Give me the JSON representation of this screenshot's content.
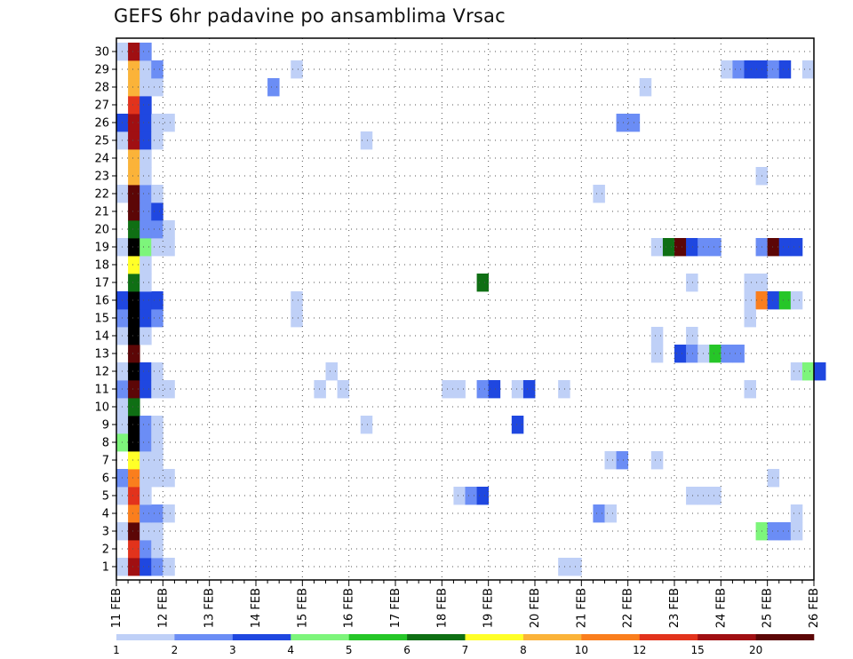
{
  "chart_data": {
    "type": "heatmap",
    "title": "GEFS 6hr padavine po ansamblima Vrsac",
    "xlabel": "",
    "ylabel": "",
    "x_tick_labels": [
      "11 FEB",
      "12 FEB",
      "13 FEB",
      "14 FEB",
      "15 FEB",
      "16 FEB",
      "17 FEB",
      "18 FEB",
      "19 FEB",
      "20 FEB",
      "21 FEB",
      "22 FEB",
      "23 FEB",
      "24 FEB",
      "25 FEB",
      "26 FEB"
    ],
    "y_tick_labels": [
      "1",
      "2",
      "3",
      "4",
      "5",
      "6",
      "7",
      "8",
      "9",
      "10",
      "11",
      "12",
      "13",
      "14",
      "15",
      "16",
      "17",
      "18",
      "19",
      "20",
      "21",
      "22",
      "23",
      "24",
      "25",
      "26",
      "27",
      "28",
      "29",
      "30"
    ],
    "x_unit": "6-hour steps from 11 FEB 00Z",
    "y_unit": "ensemble member",
    "grid": true,
    "legend": {
      "position": "bottom",
      "thresholds": [
        "1",
        "2",
        "3",
        "4",
        "5",
        "6",
        "7",
        "8",
        "10",
        "12",
        "15",
        "20"
      ],
      "colors": [
        "#bfd0f7",
        "#6b8df5",
        "#1f47e0",
        "#7df57b",
        "#26c628",
        "#0f6f14",
        "#ffff28",
        "#fbb339",
        "#fa7e1d",
        "#e2331c",
        "#a00f12",
        "#5c0606"
      ]
    },
    "cells": [
      [
        1,
        0,
        1
      ],
      [
        1,
        1,
        11
      ],
      [
        1,
        2,
        3
      ],
      [
        1,
        3,
        2
      ],
      [
        1,
        4,
        1
      ],
      [
        2,
        1,
        10
      ],
      [
        2,
        2,
        2
      ],
      [
        2,
        3,
        1
      ],
      [
        3,
        0,
        1
      ],
      [
        3,
        1,
        12
      ],
      [
        3,
        2,
        1
      ],
      [
        3,
        3,
        1
      ],
      [
        4,
        1,
        9
      ],
      [
        4,
        2,
        2
      ],
      [
        4,
        3,
        2
      ],
      [
        4,
        4,
        1
      ],
      [
        5,
        0,
        1
      ],
      [
        5,
        1,
        10
      ],
      [
        5,
        2,
        1
      ],
      [
        6,
        0,
        2
      ],
      [
        6,
        1,
        9
      ],
      [
        6,
        2,
        1
      ],
      [
        6,
        3,
        1
      ],
      [
        6,
        4,
        1
      ],
      [
        7,
        1,
        7
      ],
      [
        7,
        2,
        1
      ],
      [
        7,
        3,
        1
      ],
      [
        8,
        0,
        4
      ],
      [
        8,
        1,
        13
      ],
      [
        8,
        2,
        2
      ],
      [
        8,
        3,
        1
      ],
      [
        9,
        0,
        1
      ],
      [
        9,
        1,
        13
      ],
      [
        9,
        2,
        2
      ],
      [
        9,
        3,
        1
      ],
      [
        10,
        0,
        1
      ],
      [
        10,
        1,
        6
      ],
      [
        11,
        0,
        2
      ],
      [
        11,
        1,
        12
      ],
      [
        11,
        2,
        3
      ],
      [
        11,
        3,
        1
      ],
      [
        11,
        4,
        1
      ],
      [
        12,
        0,
        1
      ],
      [
        12,
        1,
        13
      ],
      [
        12,
        2,
        3
      ],
      [
        12,
        3,
        1
      ],
      [
        13,
        1,
        12
      ],
      [
        14,
        0,
        1
      ],
      [
        14,
        1,
        13
      ],
      [
        14,
        2,
        1
      ],
      [
        15,
        0,
        2
      ],
      [
        15,
        1,
        14
      ],
      [
        15,
        2,
        3
      ],
      [
        15,
        3,
        2
      ],
      [
        16,
        0,
        3
      ],
      [
        16,
        1,
        14
      ],
      [
        16,
        2,
        3
      ],
      [
        16,
        3,
        3
      ],
      [
        17,
        1,
        6
      ],
      [
        17,
        2,
        1
      ],
      [
        18,
        1,
        7
      ],
      [
        18,
        2,
        1
      ],
      [
        19,
        0,
        1
      ],
      [
        19,
        1,
        13
      ],
      [
        19,
        2,
        4
      ],
      [
        19,
        3,
        1
      ],
      [
        19,
        4,
        1
      ],
      [
        20,
        1,
        6
      ],
      [
        20,
        2,
        2
      ],
      [
        20,
        3,
        2
      ],
      [
        20,
        4,
        1
      ],
      [
        21,
        1,
        12
      ],
      [
        21,
        2,
        2
      ],
      [
        21,
        3,
        3
      ],
      [
        22,
        0,
        1
      ],
      [
        22,
        1,
        12
      ],
      [
        22,
        2,
        2
      ],
      [
        22,
        3,
        1
      ],
      [
        23,
        1,
        8
      ],
      [
        23,
        2,
        1
      ],
      [
        24,
        1,
        8
      ],
      [
        24,
        2,
        1
      ],
      [
        25,
        0,
        1
      ],
      [
        25,
        1,
        11
      ],
      [
        25,
        2,
        3
      ],
      [
        25,
        3,
        1
      ],
      [
        26,
        0,
        3
      ],
      [
        26,
        1,
        11
      ],
      [
        26,
        2,
        3
      ],
      [
        26,
        3,
        1
      ],
      [
        26,
        4,
        1
      ],
      [
        27,
        1,
        10
      ],
      [
        27,
        2,
        3
      ],
      [
        28,
        1,
        8
      ],
      [
        28,
        2,
        1
      ],
      [
        28,
        3,
        1
      ],
      [
        29,
        1,
        8
      ],
      [
        29,
        2,
        1
      ],
      [
        29,
        3,
        2
      ],
      [
        30,
        0,
        1
      ],
      [
        30,
        1,
        11
      ],
      [
        30,
        2,
        2
      ],
      [
        29,
        15,
        1
      ],
      [
        28,
        13,
        2
      ],
      [
        25,
        21,
        1
      ],
      [
        26,
        43,
        2
      ],
      [
        26,
        44,
        2
      ],
      [
        28,
        45,
        1
      ],
      [
        29,
        52,
        1
      ],
      [
        29,
        53,
        2
      ],
      [
        29,
        54,
        3
      ],
      [
        29,
        55,
        3
      ],
      [
        29,
        56,
        2
      ],
      [
        29,
        57,
        3
      ],
      [
        29,
        59,
        1
      ],
      [
        22,
        41,
        1
      ],
      [
        23,
        55,
        1
      ],
      [
        19,
        46,
        1
      ],
      [
        19,
        47,
        6
      ],
      [
        19,
        48,
        12
      ],
      [
        19,
        49,
        3
      ],
      [
        19,
        50,
        2
      ],
      [
        19,
        51,
        2
      ],
      [
        19,
        55,
        2
      ],
      [
        19,
        56,
        12
      ],
      [
        19,
        57,
        3
      ],
      [
        19,
        58,
        3
      ],
      [
        17,
        31,
        6
      ],
      [
        17,
        49,
        1
      ],
      [
        17,
        54,
        1
      ],
      [
        17,
        55,
        1
      ],
      [
        16,
        15,
        1
      ],
      [
        16,
        54,
        1
      ],
      [
        16,
        55,
        9
      ],
      [
        16,
        56,
        3
      ],
      [
        16,
        57,
        5
      ],
      [
        16,
        58,
        1
      ],
      [
        15,
        15,
        1
      ],
      [
        15,
        54,
        1
      ],
      [
        14,
        46,
        1
      ],
      [
        14,
        49,
        1
      ],
      [
        13,
        46,
        1
      ],
      [
        13,
        48,
        3
      ],
      [
        13,
        49,
        2
      ],
      [
        13,
        50,
        1
      ],
      [
        13,
        51,
        5
      ],
      [
        13,
        52,
        2
      ],
      [
        13,
        53,
        2
      ],
      [
        12,
        18,
        1
      ],
      [
        12,
        58,
        1
      ],
      [
        12,
        59,
        4
      ],
      [
        12,
        60,
        3
      ],
      [
        11,
        17,
        1
      ],
      [
        11,
        19,
        1
      ],
      [
        11,
        28,
        1
      ],
      [
        11,
        29,
        1
      ],
      [
        11,
        31,
        2
      ],
      [
        11,
        32,
        3
      ],
      [
        11,
        34,
        1
      ],
      [
        11,
        35,
        3
      ],
      [
        11,
        38,
        1
      ],
      [
        11,
        54,
        1
      ],
      [
        9,
        21,
        1
      ],
      [
        9,
        34,
        3
      ],
      [
        7,
        42,
        1
      ],
      [
        7,
        43,
        2
      ],
      [
        7,
        46,
        1
      ],
      [
        6,
        56,
        1
      ],
      [
        5,
        29,
        1
      ],
      [
        5,
        30,
        2
      ],
      [
        5,
        31,
        3
      ],
      [
        5,
        49,
        1
      ],
      [
        5,
        50,
        1
      ],
      [
        5,
        51,
        1
      ],
      [
        4,
        41,
        2
      ],
      [
        4,
        42,
        1
      ],
      [
        4,
        58,
        1
      ],
      [
        3,
        55,
        4
      ],
      [
        3,
        56,
        2
      ],
      [
        3,
        57,
        2
      ],
      [
        3,
        58,
        1
      ],
      [
        1,
        38,
        1
      ],
      [
        1,
        39,
        1
      ]
    ]
  }
}
